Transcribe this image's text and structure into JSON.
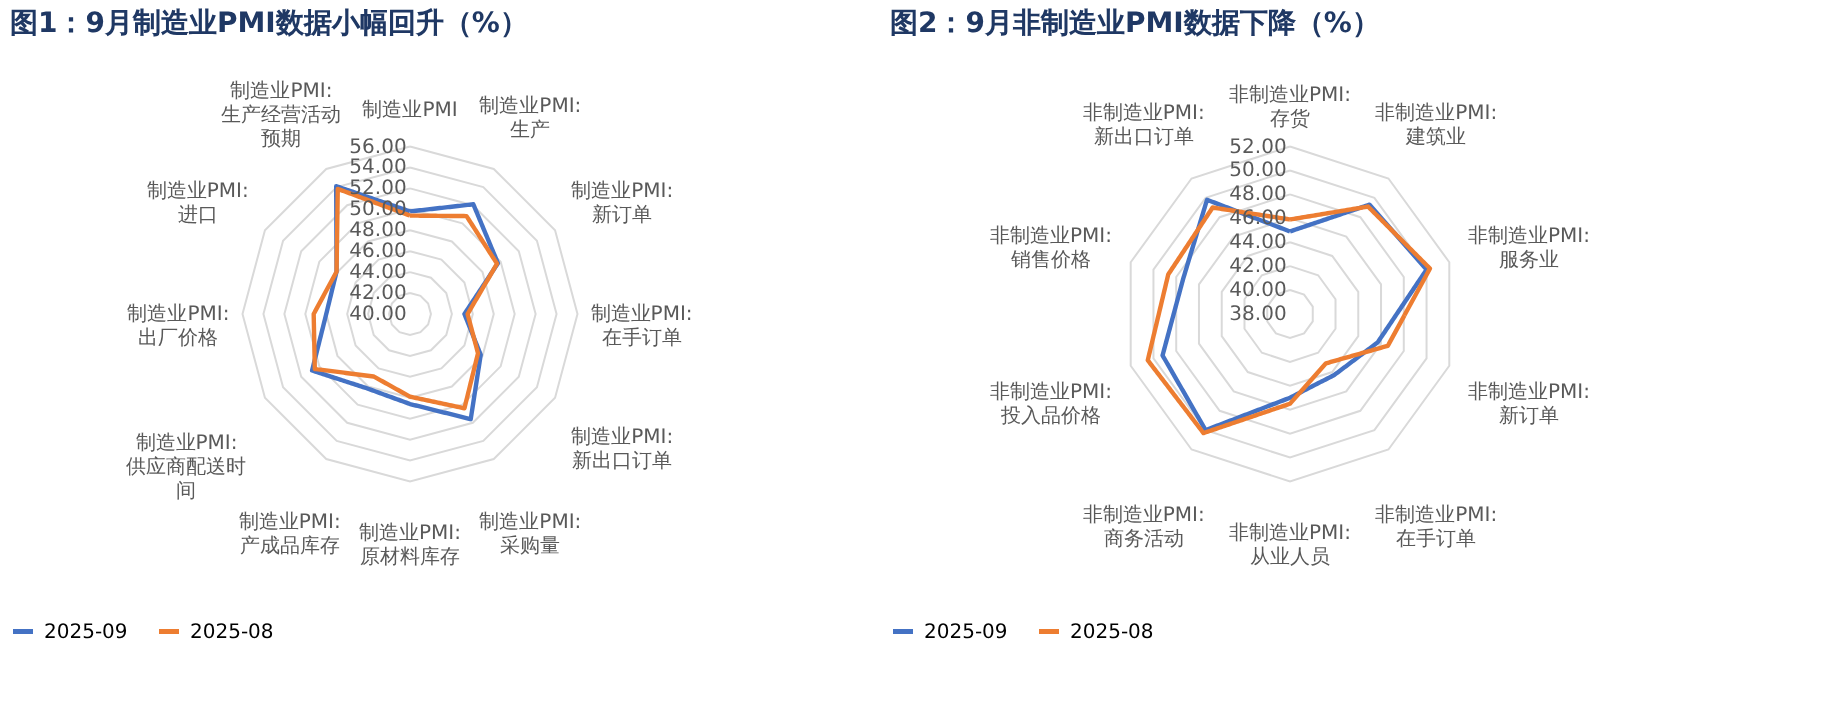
{
  "chart_data": [
    {
      "type": "radar",
      "title": "图1：9月制造业PMI数据小幅回升（%）",
      "categories": [
        "制造业PMI",
        "制造业PMI:生产",
        "制造业PMI:新订单",
        "制造业PMI:在手订单",
        "制造业PMI:新出口订单",
        "制造业PMI:采购量",
        "制造业PMI:原材料库存",
        "制造业PMI:产成品库存",
        "制造业PMI:供应商配送时间",
        "制造业PMI:出厂价格",
        "制造业PMI:进口",
        "制造业PMI:生产经营活动预期"
      ],
      "series": [
        {
          "name": "2025-09",
          "color": "#4472c4",
          "values": [
            49.8,
            52.1,
            49.7,
            45.2,
            47.8,
            51.6,
            48.6,
            48.2,
            50.8,
            48.0,
            48.1,
            54.1
          ]
        },
        {
          "name": "2025-08",
          "color": "#ed7d31",
          "values": [
            49.4,
            50.8,
            49.6,
            45.5,
            47.5,
            50.4,
            47.9,
            46.9,
            50.5,
            49.2,
            48.1,
            53.8
          ]
        }
      ],
      "ylim": [
        40,
        56
      ],
      "yticks": [
        {
          "value": 40,
          "label": "40.00"
        },
        {
          "value": 42,
          "label": "42.00"
        },
        {
          "value": 44,
          "label": "44.00"
        },
        {
          "value": 46,
          "label": "46.00"
        },
        {
          "value": 48,
          "label": "48.00"
        },
        {
          "value": 50,
          "label": "50.00"
        },
        {
          "value": 52,
          "label": "52.00"
        },
        {
          "value": 54,
          "label": "54.00"
        },
        {
          "value": 56,
          "label": "56.00"
        }
      ],
      "grid": true,
      "legend": "bottom",
      "line_style": "solid"
    },
    {
      "type": "radar",
      "title": "图2：9月非制造业PMI数据下降（%）",
      "categories": [
        "非制造业PMI:存货",
        "非制造业PMI:建筑业",
        "非制造业PMI:服务业",
        "非制造业PMI:新订单",
        "非制造业PMI:在手订单",
        "非制造业PMI:从业人员",
        "非制造业PMI:商务活动",
        "非制造业PMI:投入品价格",
        "非制造业PMI:销售价格",
        "非制造业PMI:新出口订单"
      ],
      "series": [
        {
          "name": "2025-09",
          "color": "#4472c4",
          "values": [
            44.9,
            49.3,
            50.0,
            45.7,
            44.3,
            45.0,
            50.0,
            49.2,
            47.4,
            49.8
          ]
        },
        {
          "name": "2025-08",
          "color": "#ed7d31",
          "values": [
            45.9,
            49.1,
            50.3,
            46.6,
            43.1,
            45.5,
            50.3,
            50.5,
            48.7,
            49.0
          ]
        }
      ],
      "ylim": [
        38,
        52
      ],
      "yticks": [
        {
          "value": 38,
          "label": "38.00"
        },
        {
          "value": 40,
          "label": "40.00"
        },
        {
          "value": 42,
          "label": "42.00"
        },
        {
          "value": 44,
          "label": "44.00"
        },
        {
          "value": 46,
          "label": "46.00"
        },
        {
          "value": 48,
          "label": "48.00"
        },
        {
          "value": 50,
          "label": "50.00"
        },
        {
          "value": 52,
          "label": "52.00"
        }
      ],
      "grid": true,
      "legend": "bottom",
      "line_style": "solid"
    }
  ]
}
